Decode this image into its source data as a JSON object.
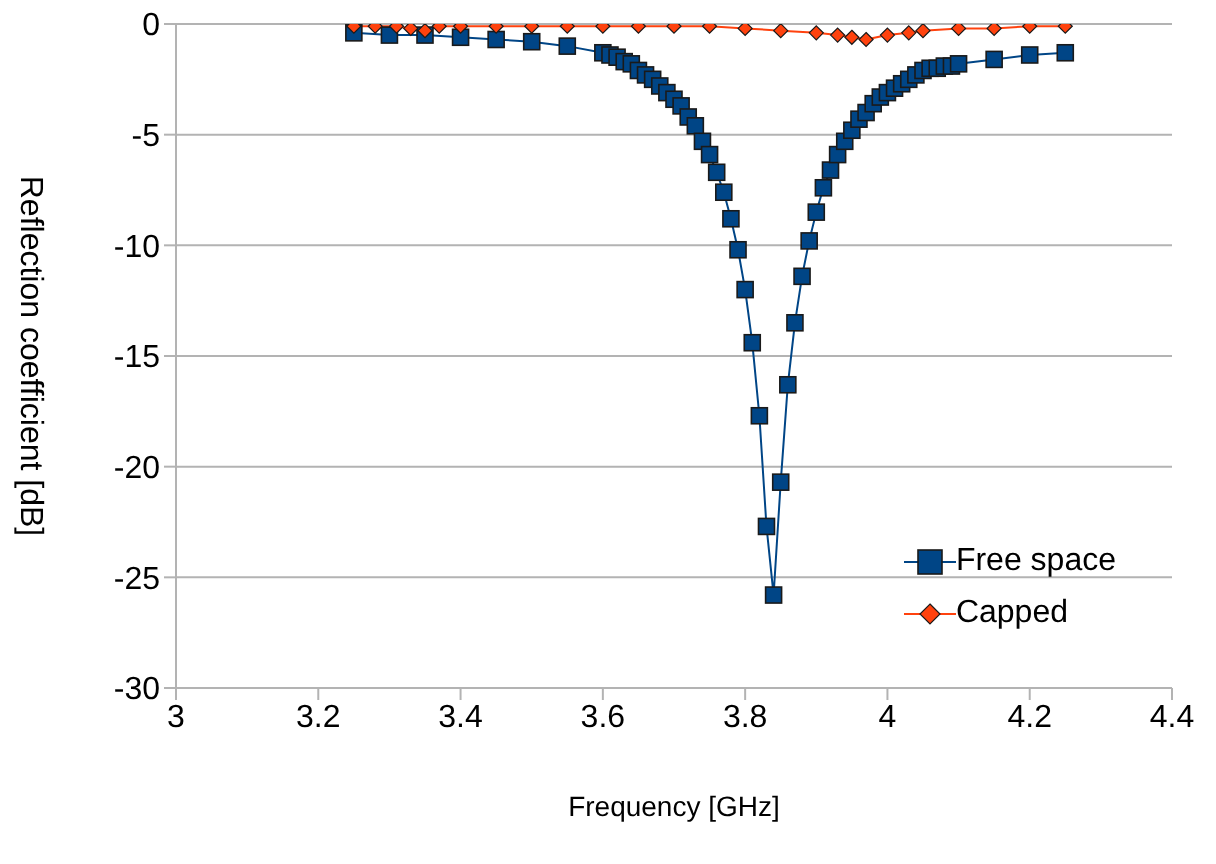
{
  "chart_data": {
    "type": "line",
    "xlabel": "Frequency [GHz]",
    "ylabel": "Reflection coefficient [dB]",
    "xlim": [
      3,
      4.4
    ],
    "xticks": [
      3,
      3.2,
      3.4,
      3.6,
      3.8,
      4,
      4.2,
      4.4
    ],
    "ylim": [
      -30,
      0
    ],
    "yticks": [
      -30,
      -25,
      -20,
      -15,
      -10,
      -5,
      0
    ],
    "grid": "y",
    "legend": "bottom right",
    "series": [
      {
        "name": "Free space",
        "color": "#004586",
        "marker": "square",
        "x": [
          3.25,
          3.3,
          3.35,
          3.4,
          3.45,
          3.5,
          3.55,
          3.6,
          3.61,
          3.62,
          3.63,
          3.64,
          3.65,
          3.66,
          3.67,
          3.68,
          3.69,
          3.7,
          3.71,
          3.72,
          3.73,
          3.74,
          3.75,
          3.76,
          3.77,
          3.78,
          3.79,
          3.8,
          3.81,
          3.82,
          3.83,
          3.84,
          3.85,
          3.86,
          3.87,
          3.88,
          3.89,
          3.9,
          3.91,
          3.92,
          3.93,
          3.94,
          3.95,
          3.96,
          3.97,
          3.98,
          3.99,
          4,
          4.01,
          4.02,
          4.03,
          4.04,
          4.05,
          4.06,
          4.07,
          4.08,
          4.09,
          4.1,
          4.15,
          4.2,
          4.25
        ],
        "values": [
          -0.4,
          -0.5,
          -0.5,
          -0.6,
          -0.7,
          -0.8,
          -1.0,
          -1.3,
          -1.4,
          -1.5,
          -1.7,
          -1.8,
          -2.1,
          -2.3,
          -2.5,
          -2.8,
          -3.1,
          -3.4,
          -3.7,
          -4.2,
          -4.6,
          -5.3,
          -5.9,
          -6.7,
          -7.6,
          -8.8,
          -10.2,
          -12.0,
          -14.4,
          -17.7,
          -22.7,
          -25.8,
          -20.7,
          -16.3,
          -13.5,
          -11.4,
          -9.8,
          -8.5,
          -7.4,
          -6.6,
          -5.9,
          -5.3,
          -4.8,
          -4.3,
          -4.0,
          -3.6,
          -3.3,
          -3.1,
          -2.9,
          -2.7,
          -2.5,
          -2.3,
          -2.1,
          -2.0,
          -2.0,
          -1.9,
          -1.9,
          -1.8,
          -1.6,
          -1.4,
          -1.3
        ]
      },
      {
        "name": "Capped",
        "color": "#ff420e",
        "marker": "diamond",
        "x": [
          3.25,
          3.28,
          3.31,
          3.33,
          3.35,
          3.37,
          3.4,
          3.45,
          3.5,
          3.55,
          3.6,
          3.65,
          3.7,
          3.75,
          3.8,
          3.85,
          3.9,
          3.93,
          3.95,
          3.97,
          4,
          4.03,
          4.05,
          4.1,
          4.15,
          4.2,
          4.25
        ],
        "values": [
          -0.1,
          -0.1,
          -0.1,
          -0.2,
          -0.3,
          -0.1,
          -0.1,
          -0.1,
          -0.1,
          -0.1,
          -0.1,
          -0.1,
          -0.1,
          -0.1,
          -0.2,
          -0.3,
          -0.4,
          -0.5,
          -0.6,
          -0.7,
          -0.5,
          -0.4,
          -0.3,
          -0.2,
          -0.2,
          -0.1,
          -0.1
        ]
      }
    ]
  }
}
